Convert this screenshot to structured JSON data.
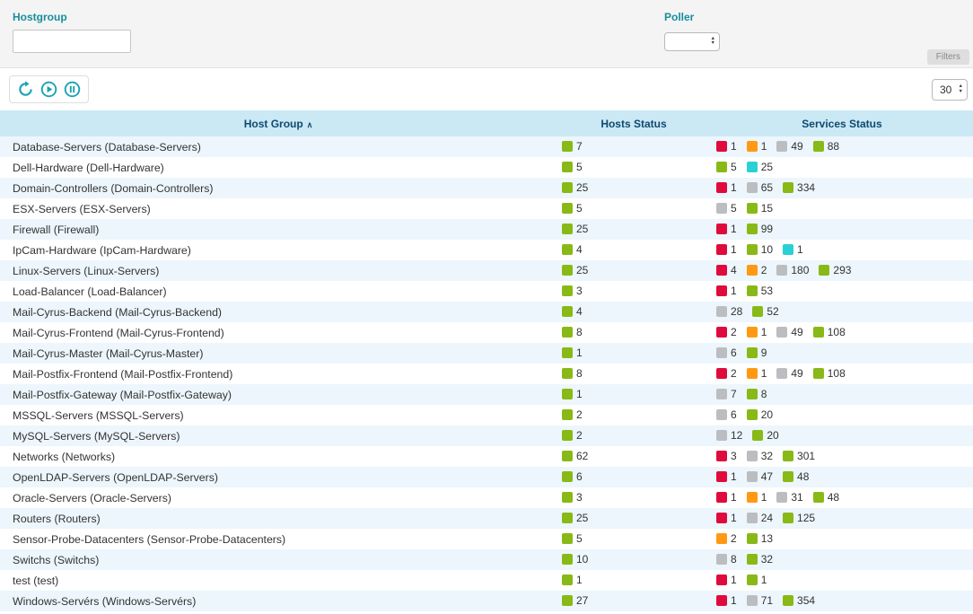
{
  "filters": {
    "hostgroup_label": "Hostgroup",
    "hostgroup_value": "",
    "poller_label": "Poller",
    "poller_value": "",
    "filters_button": "Filters"
  },
  "toolbar": {
    "page_size": "30"
  },
  "status_colors": {
    "green": "#88B917",
    "red": "#E00B3D",
    "orange": "#FF9913",
    "gray": "#BCBDC0",
    "cyan": "#2AD1D4"
  },
  "table": {
    "columns": [
      "Host Group",
      "Hosts Status",
      "Services Status"
    ],
    "sort_indicator": "∧",
    "rows": [
      {
        "name": "Database-Servers (Database-Servers)",
        "hosts": [
          [
            "green",
            7
          ]
        ],
        "services": [
          [
            "red",
            1
          ],
          [
            "orange",
            1
          ],
          [
            "gray",
            49
          ],
          [
            "green",
            88
          ]
        ]
      },
      {
        "name": "Dell-Hardware (Dell-Hardware)",
        "hosts": [
          [
            "green",
            5
          ]
        ],
        "services": [
          [
            "green",
            5
          ],
          [
            "cyan",
            25
          ]
        ]
      },
      {
        "name": "Domain-Controllers (Domain-Controllers)",
        "hosts": [
          [
            "green",
            25
          ]
        ],
        "services": [
          [
            "red",
            1
          ],
          [
            "gray",
            65
          ],
          [
            "green",
            334
          ]
        ]
      },
      {
        "name": "ESX-Servers (ESX-Servers)",
        "hosts": [
          [
            "green",
            5
          ]
        ],
        "services": [
          [
            "gray",
            5
          ],
          [
            "green",
            15
          ]
        ]
      },
      {
        "name": "Firewall (Firewall)",
        "hosts": [
          [
            "green",
            25
          ]
        ],
        "services": [
          [
            "red",
            1
          ],
          [
            "green",
            99
          ]
        ]
      },
      {
        "name": "IpCam-Hardware (IpCam-Hardware)",
        "hosts": [
          [
            "green",
            4
          ]
        ],
        "services": [
          [
            "red",
            1
          ],
          [
            "green",
            10
          ],
          [
            "cyan",
            1
          ]
        ]
      },
      {
        "name": "Linux-Servers (Linux-Servers)",
        "hosts": [
          [
            "green",
            25
          ]
        ],
        "services": [
          [
            "red",
            4
          ],
          [
            "orange",
            2
          ],
          [
            "gray",
            180
          ],
          [
            "green",
            293
          ]
        ]
      },
      {
        "name": "Load-Balancer (Load-Balancer)",
        "hosts": [
          [
            "green",
            3
          ]
        ],
        "services": [
          [
            "red",
            1
          ],
          [
            "green",
            53
          ]
        ]
      },
      {
        "name": "Mail-Cyrus-Backend (Mail-Cyrus-Backend)",
        "hosts": [
          [
            "green",
            4
          ]
        ],
        "services": [
          [
            "gray",
            28
          ],
          [
            "green",
            52
          ]
        ]
      },
      {
        "name": "Mail-Cyrus-Frontend (Mail-Cyrus-Frontend)",
        "hosts": [
          [
            "green",
            8
          ]
        ],
        "services": [
          [
            "red",
            2
          ],
          [
            "orange",
            1
          ],
          [
            "gray",
            49
          ],
          [
            "green",
            108
          ]
        ]
      },
      {
        "name": "Mail-Cyrus-Master (Mail-Cyrus-Master)",
        "hosts": [
          [
            "green",
            1
          ]
        ],
        "services": [
          [
            "gray",
            6
          ],
          [
            "green",
            9
          ]
        ]
      },
      {
        "name": "Mail-Postfix-Frontend (Mail-Postfix-Frontend)",
        "hosts": [
          [
            "green",
            8
          ]
        ],
        "services": [
          [
            "red",
            2
          ],
          [
            "orange",
            1
          ],
          [
            "gray",
            49
          ],
          [
            "green",
            108
          ]
        ]
      },
      {
        "name": "Mail-Postfix-Gateway (Mail-Postfix-Gateway)",
        "hosts": [
          [
            "green",
            1
          ]
        ],
        "services": [
          [
            "gray",
            7
          ],
          [
            "green",
            8
          ]
        ]
      },
      {
        "name": "MSSQL-Servers (MSSQL-Servers)",
        "hosts": [
          [
            "green",
            2
          ]
        ],
        "services": [
          [
            "gray",
            6
          ],
          [
            "green",
            20
          ]
        ]
      },
      {
        "name": "MySQL-Servers (MySQL-Servers)",
        "hosts": [
          [
            "green",
            2
          ]
        ],
        "services": [
          [
            "gray",
            12
          ],
          [
            "green",
            20
          ]
        ]
      },
      {
        "name": "Networks (Networks)",
        "hosts": [
          [
            "green",
            62
          ]
        ],
        "services": [
          [
            "red",
            3
          ],
          [
            "gray",
            32
          ],
          [
            "green",
            301
          ]
        ]
      },
      {
        "name": "OpenLDAP-Servers (OpenLDAP-Servers)",
        "hosts": [
          [
            "green",
            6
          ]
        ],
        "services": [
          [
            "red",
            1
          ],
          [
            "gray",
            47
          ],
          [
            "green",
            48
          ]
        ]
      },
      {
        "name": "Oracle-Servers (Oracle-Servers)",
        "hosts": [
          [
            "green",
            3
          ]
        ],
        "services": [
          [
            "red",
            1
          ],
          [
            "orange",
            1
          ],
          [
            "gray",
            31
          ],
          [
            "green",
            48
          ]
        ]
      },
      {
        "name": "Routers (Routers)",
        "hosts": [
          [
            "green",
            25
          ]
        ],
        "services": [
          [
            "red",
            1
          ],
          [
            "gray",
            24
          ],
          [
            "green",
            125
          ]
        ]
      },
      {
        "name": "Sensor-Probe-Datacenters (Sensor-Probe-Datacenters)",
        "hosts": [
          [
            "green",
            5
          ]
        ],
        "services": [
          [
            "orange",
            2
          ],
          [
            "green",
            13
          ]
        ]
      },
      {
        "name": "Switchs (Switchs)",
        "hosts": [
          [
            "green",
            10
          ]
        ],
        "services": [
          [
            "gray",
            8
          ],
          [
            "green",
            32
          ]
        ]
      },
      {
        "name": "test (test)",
        "hosts": [
          [
            "green",
            1
          ]
        ],
        "services": [
          [
            "red",
            1
          ],
          [
            "green",
            1
          ]
        ]
      },
      {
        "name": "Windows-Servérs (Windows-Servérs)",
        "hosts": [
          [
            "green",
            27
          ]
        ],
        "services": [
          [
            "red",
            1
          ],
          [
            "gray",
            71
          ],
          [
            "green",
            354
          ]
        ]
      }
    ]
  }
}
